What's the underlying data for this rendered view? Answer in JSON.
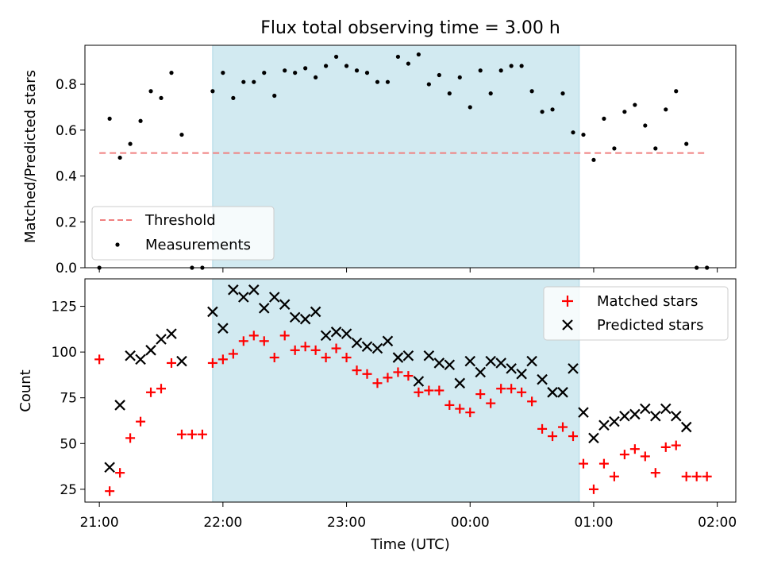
{
  "chart_data": [
    {
      "type": "scatter",
      "title": "Flux total observing time = 3.00 h",
      "xlabel": "",
      "ylabel": "Matched/Predicted stars",
      "xlim": [
        "20:53",
        "02:09"
      ],
      "ylim": [
        0,
        0.97
      ],
      "yticks": [
        0.0,
        0.2,
        0.4,
        0.6,
        0.8
      ],
      "ytick_labels": [
        "0.0",
        "0.2",
        "0.4",
        "0.6",
        "0.8"
      ],
      "shaded_interval": [
        "21:55",
        "00:53"
      ],
      "shaded_color": "#add8e6",
      "legend_position": "lower left",
      "series": [
        {
          "name": "Threshold",
          "style": "dashed-line",
          "color": "#f08080",
          "x": [
            "21:00",
            "01:55"
          ],
          "y": [
            0.5,
            0.5
          ]
        },
        {
          "name": "Measurements",
          "style": "dots",
          "color": "#000000",
          "x": [
            "21:00",
            "21:05",
            "21:10",
            "21:15",
            "21:20",
            "21:25",
            "21:30",
            "21:35",
            "21:40",
            "21:45",
            "21:50",
            "21:55",
            "22:00",
            "22:05",
            "22:10",
            "22:15",
            "22:20",
            "22:25",
            "22:30",
            "22:35",
            "22:40",
            "22:45",
            "22:50",
            "22:55",
            "23:00",
            "23:05",
            "23:10",
            "23:15",
            "23:20",
            "23:25",
            "23:30",
            "23:35",
            "23:40",
            "23:45",
            "23:50",
            "23:55",
            "00:00",
            "00:05",
            "00:10",
            "00:15",
            "00:20",
            "00:25",
            "00:30",
            "00:35",
            "00:40",
            "00:45",
            "00:50",
            "00:55",
            "01:00",
            "01:05",
            "01:10",
            "01:15",
            "01:20",
            "01:25",
            "01:30",
            "01:35",
            "01:40",
            "01:45",
            "01:50",
            "01:55"
          ],
          "y": [
            0.0,
            0.65,
            0.48,
            0.54,
            0.64,
            0.77,
            0.74,
            0.85,
            0.58,
            0.0,
            0.0,
            0.77,
            0.85,
            0.74,
            0.81,
            0.81,
            0.85,
            0.75,
            0.86,
            0.85,
            0.87,
            0.83,
            0.88,
            0.92,
            0.88,
            0.86,
            0.85,
            0.81,
            0.81,
            0.92,
            0.89,
            0.93,
            0.8,
            0.84,
            0.76,
            0.83,
            0.7,
            0.86,
            0.76,
            0.86,
            0.88,
            0.88,
            0.77,
            0.68,
            0.69,
            0.76,
            0.59,
            0.58,
            0.47,
            0.65,
            0.52,
            0.68,
            0.71,
            0.62,
            0.52,
            0.69,
            0.77,
            0.54,
            0.0,
            0.0
          ]
        }
      ]
    },
    {
      "type": "scatter",
      "title": "",
      "xlabel": "Time (UTC)",
      "ylabel": "Count",
      "xlim": [
        "20:53",
        "02:09"
      ],
      "xticks": [
        "21:00",
        "22:00",
        "23:00",
        "00:00",
        "01:00",
        "02:00"
      ],
      "ylim": [
        18,
        140
      ],
      "yticks": [
        25,
        50,
        75,
        100,
        125
      ],
      "shaded_interval": [
        "21:55",
        "00:53"
      ],
      "shaded_color": "#add8e6",
      "legend_position": "upper right",
      "series": [
        {
          "name": "Matched stars",
          "marker": "+",
          "color": "#ff0000",
          "x": [
            "21:00",
            "21:05",
            "21:10",
            "21:15",
            "21:20",
            "21:25",
            "21:30",
            "21:35",
            "21:40",
            "21:45",
            "21:50",
            "21:55",
            "22:00",
            "22:05",
            "22:10",
            "22:15",
            "22:20",
            "22:25",
            "22:30",
            "22:35",
            "22:40",
            "22:45",
            "22:50",
            "22:55",
            "23:00",
            "23:05",
            "23:10",
            "23:15",
            "23:20",
            "23:25",
            "23:30",
            "23:35",
            "23:40",
            "23:45",
            "23:50",
            "23:55",
            "00:00",
            "00:05",
            "00:10",
            "00:15",
            "00:20",
            "00:25",
            "00:30",
            "00:35",
            "00:40",
            "00:45",
            "00:50",
            "00:55",
            "01:00",
            "01:05",
            "01:10",
            "01:15",
            "01:20",
            "01:25",
            "01:30",
            "01:35",
            "01:40",
            "01:45",
            "01:50",
            "01:55"
          ],
          "y": [
            96,
            24,
            34,
            53,
            62,
            78,
            80,
            94,
            55,
            55,
            55,
            94,
            96,
            99,
            106,
            109,
            106,
            97,
            109,
            101,
            103,
            101,
            97,
            102,
            97,
            90,
            88,
            83,
            86,
            89,
            87,
            78,
            79,
            79,
            71,
            69,
            67,
            77,
            72,
            80,
            80,
            78,
            73,
            58,
            54,
            59,
            54,
            39,
            25,
            39,
            32,
            44,
            47,
            43,
            34,
            48,
            49,
            32,
            32,
            32
          ]
        },
        {
          "name": "Predicted stars",
          "marker": "x",
          "color": "#000000",
          "x": [
            "21:05",
            "21:10",
            "21:15",
            "21:20",
            "21:25",
            "21:30",
            "21:35",
            "21:40",
            "21:55",
            "22:00",
            "22:05",
            "22:10",
            "22:15",
            "22:20",
            "22:25",
            "22:30",
            "22:35",
            "22:40",
            "22:45",
            "22:50",
            "22:55",
            "23:00",
            "23:05",
            "23:10",
            "23:15",
            "23:20",
            "23:25",
            "23:30",
            "23:35",
            "23:40",
            "23:45",
            "23:50",
            "23:55",
            "00:00",
            "00:05",
            "00:10",
            "00:15",
            "00:20",
            "00:25",
            "00:30",
            "00:35",
            "00:40",
            "00:45",
            "00:50",
            "00:55",
            "01:00",
            "01:05",
            "01:10",
            "01:15",
            "01:20",
            "01:25",
            "01:30",
            "01:35",
            "01:40",
            "01:45"
          ],
          "y": [
            37,
            71,
            98,
            96,
            101,
            107,
            110,
            95,
            122,
            113,
            134,
            130,
            134,
            124,
            130,
            126,
            119,
            118,
            122,
            109,
            111,
            110,
            105,
            103,
            102,
            106,
            97,
            98,
            84,
            98,
            94,
            93,
            83,
            95,
            89,
            95,
            94,
            91,
            88,
            95,
            85,
            78,
            78,
            91,
            67,
            53,
            60,
            62,
            65,
            66,
            69,
            65,
            69,
            65,
            59
          ]
        }
      ]
    }
  ]
}
